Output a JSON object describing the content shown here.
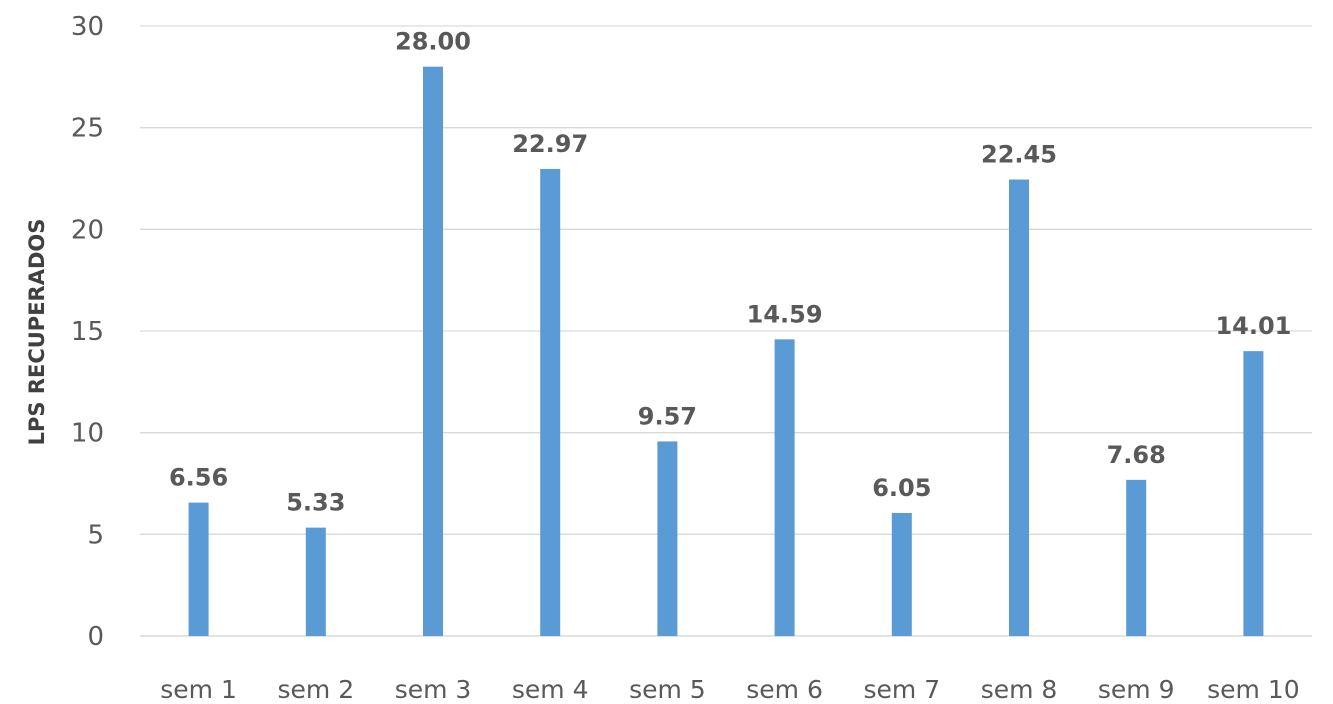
{
  "chart_data": {
    "type": "bar",
    "title": "",
    "xlabel": "",
    "ylabel": "LPS RECUPERADOS",
    "categories": [
      "sem 1",
      "sem 2",
      "sem 3",
      "sem 4",
      "sem 5",
      "sem 6",
      "sem 7",
      "sem 8",
      "sem 9",
      "sem 10"
    ],
    "values": [
      6.56,
      5.33,
      28.0,
      22.97,
      9.57,
      14.59,
      6.05,
      22.45,
      7.68,
      14.01
    ],
    "data_labels": [
      "6.56",
      "5.33",
      "28.00",
      "22.97",
      "9.57",
      "14.59",
      "6.05",
      "22.45",
      "7.68",
      "14.01"
    ],
    "ylim": [
      0,
      30
    ],
    "yticks": [
      0,
      5,
      10,
      15,
      20,
      25,
      30
    ],
    "grid": true,
    "legend": "none",
    "bar_color": "#5b9bd5"
  }
}
